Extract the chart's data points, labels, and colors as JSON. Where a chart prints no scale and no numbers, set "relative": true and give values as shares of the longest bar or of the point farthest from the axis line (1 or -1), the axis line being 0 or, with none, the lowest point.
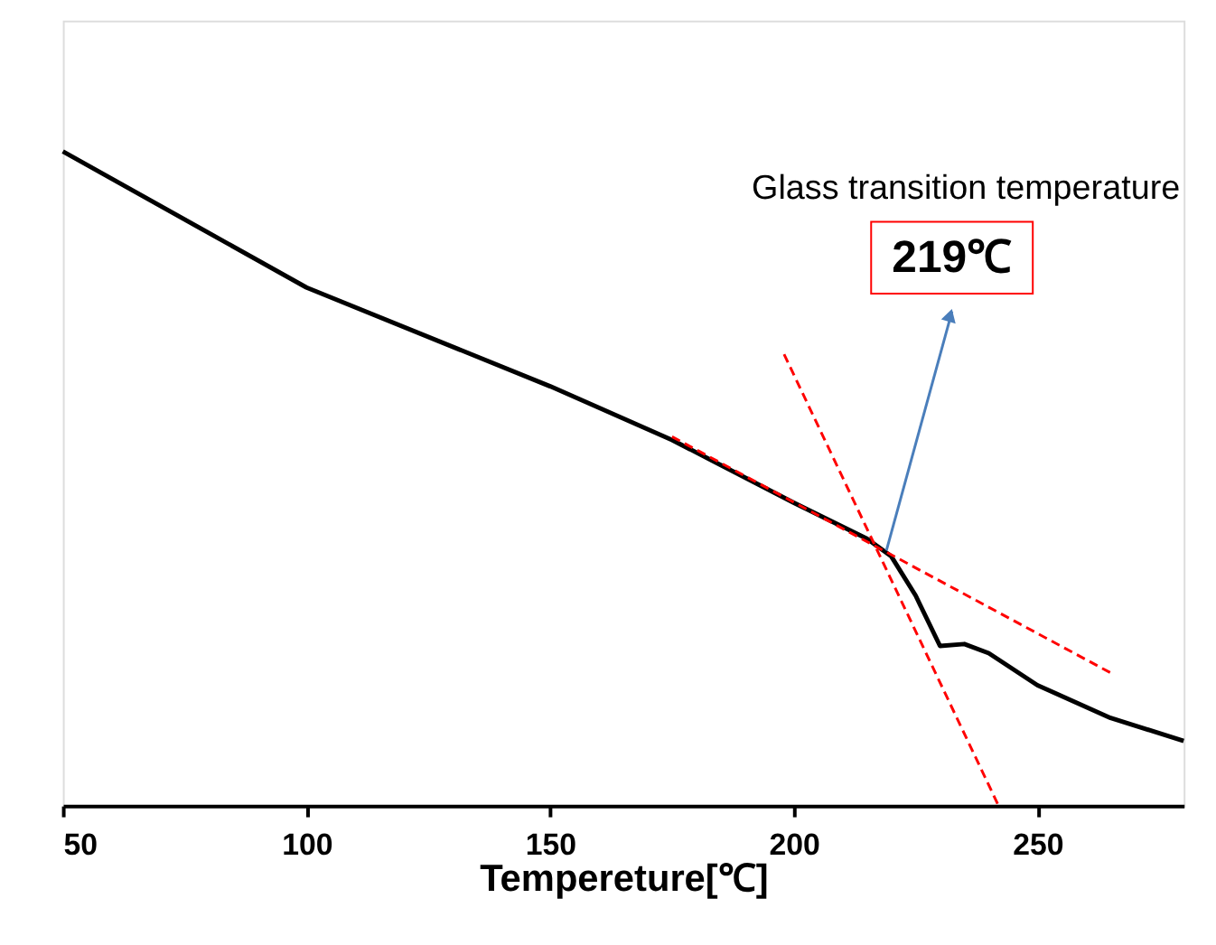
{
  "chart_data": {
    "type": "line",
    "relative": true,
    "xlabel": "Tempereture[℃]",
    "xlim": [
      50,
      280
    ],
    "xticks": [
      50,
      100,
      150,
      200,
      250
    ],
    "grid": false,
    "marker": "none",
    "annotations": [
      "Glass transition temperature",
      {
        "text": "219℃",
        "x": 219,
        "y": 0.39
      }
    ],
    "series": [
      {
        "color": "#000000",
        "line_style": "solid",
        "x": [
          50,
          100,
          150,
          175,
          200,
          215,
          220,
          225,
          230,
          235,
          240,
          250,
          265,
          280
        ],
        "values": [
          1.0,
          0.792,
          0.641,
          0.559,
          0.463,
          0.408,
          0.381,
          0.321,
          0.244,
          0.247,
          0.233,
          0.184,
          0.134,
          0.099
        ]
      },
      {
        "type": "line",
        "color": "#ff0000",
        "line_style": "dashed",
        "x": [
          175,
          265
        ],
        "values": [
          0.564,
          0.203
        ]
      },
      {
        "type": "line",
        "color": "#ff0000",
        "line_style": "dashed",
        "x": [
          198,
          242
        ],
        "values": [
          0.69,
          0.0
        ]
      }
    ]
  }
}
